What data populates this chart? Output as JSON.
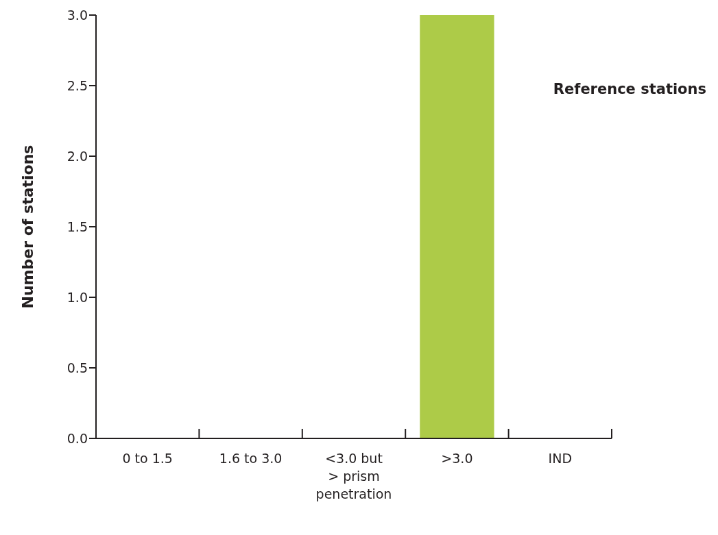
{
  "chart_data": {
    "type": "bar",
    "title": "Reference stations",
    "ylabel": "Number of stations",
    "categories": [
      "0 to 1.5",
      "1.6 to 3.0",
      "<3.0 but > prism penetration",
      ">3.0",
      "IND"
    ],
    "values": [
      0,
      0,
      0,
      3,
      0
    ],
    "color": "#adcb48",
    "ylim": [
      0,
      3
    ],
    "yticks": [
      {
        "value": 0,
        "label": "0.0"
      },
      {
        "value": 0.5,
        "label": "0.5"
      },
      {
        "value": 1,
        "label": "1.0"
      },
      {
        "value": 1.5,
        "label": "1.5"
      },
      {
        "value": 2,
        "label": "2.0"
      },
      {
        "value": 2.5,
        "label": "2.5"
      },
      {
        "value": 3,
        "label": "3.0"
      }
    ],
    "grid": false
  }
}
